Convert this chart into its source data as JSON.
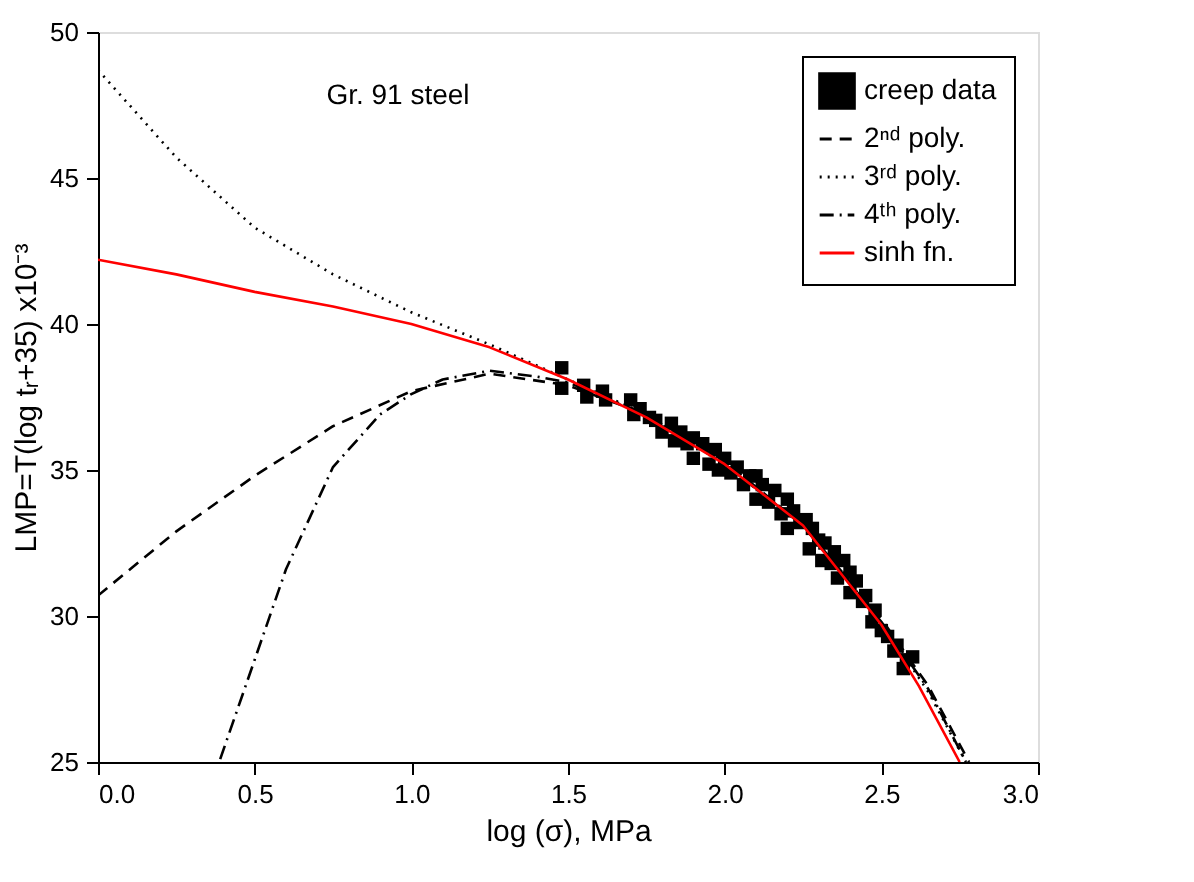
{
  "chart_data": {
    "type": "line",
    "xlabel": "log (σ), MPa",
    "ylabel": "LMP=T(log tᵣ+35) x10⁻³",
    "annotations": [
      "Gr. 91 steel"
    ],
    "xlim": [
      0,
      3
    ],
    "ylim": [
      25,
      50
    ],
    "xticks": [
      {
        "value": 0,
        "label": "0.0"
      },
      0.5,
      {
        "value": 1,
        "label": "1.0"
      },
      1.5,
      {
        "value": 2,
        "label": "2.0"
      },
      2.5,
      {
        "value": 3,
        "label": "3.0"
      }
    ],
    "yticks": [
      25,
      30,
      35,
      40,
      45,
      50
    ],
    "grid": false,
    "legend": "top right",
    "series": [
      {
        "name": "creep data",
        "type": "scatter",
        "marker": "square",
        "color": "#000000",
        "x": [
          1.48,
          1.48,
          1.55,
          1.56,
          1.61,
          1.62,
          1.7,
          1.71,
          1.73,
          1.76,
          1.78,
          1.8,
          1.83,
          1.84,
          1.86,
          1.88,
          1.9,
          1.9,
          1.93,
          1.95,
          1.97,
          1.98,
          2.0,
          2.02,
          2.04,
          2.06,
          2.08,
          2.1,
          2.1,
          2.12,
          2.14,
          2.16,
          2.18,
          2.2,
          2.2,
          2.22,
          2.24,
          2.26,
          2.27,
          2.28,
          2.3,
          2.31,
          2.32,
          2.34,
          2.35,
          2.36,
          2.38,
          2.4,
          2.4,
          2.42,
          2.44,
          2.45,
          2.47,
          2.48,
          2.5,
          2.52,
          2.54,
          2.55,
          2.57,
          2.58,
          2.6
        ],
        "values": [
          38.5,
          37.8,
          37.9,
          37.5,
          37.7,
          37.4,
          37.4,
          36.9,
          37.1,
          36.8,
          36.7,
          36.3,
          36.6,
          36.0,
          36.3,
          35.9,
          36.1,
          35.4,
          35.9,
          35.2,
          35.7,
          35.0,
          35.4,
          34.9,
          35.1,
          34.5,
          34.8,
          34.8,
          34.0,
          34.5,
          33.9,
          34.3,
          33.5,
          34.0,
          33.0,
          33.6,
          33.2,
          33.3,
          32.3,
          33.0,
          32.6,
          31.9,
          32.5,
          31.8,
          32.2,
          31.3,
          31.9,
          31.5,
          30.8,
          31.2,
          30.5,
          30.7,
          29.8,
          30.2,
          29.5,
          29.3,
          28.8,
          29.0,
          28.2,
          28.5,
          28.6
        ]
      },
      {
        "name": "2ⁿᵈ poly.",
        "line_style": "dashed",
        "color": "#000000",
        "x": [
          0,
          0.25,
          0.5,
          0.75,
          1.0,
          1.25,
          1.5,
          1.75,
          2.0,
          2.25,
          2.5,
          2.65,
          2.78
        ],
        "values": [
          30.7,
          32.9,
          34.8,
          36.5,
          37.7,
          38.3,
          37.9,
          36.9,
          35.3,
          33.1,
          29.9,
          27.6,
          25.0
        ]
      },
      {
        "name": "3ʳᵈ poly.",
        "line_style": "dotted",
        "color": "#000000",
        "x": [
          0,
          0.25,
          0.5,
          0.75,
          1.0,
          1.25,
          1.5,
          1.75,
          2.0,
          2.25,
          2.5,
          2.65,
          2.77
        ],
        "values": [
          48.7,
          45.7,
          43.3,
          41.7,
          40.4,
          39.3,
          38.1,
          36.9,
          35.2,
          33.1,
          29.8,
          27.4,
          25.0
        ]
      },
      {
        "name": "4ᵗʰ poly.",
        "line_style": "dashdot",
        "color": "#000000",
        "x": [
          0.39,
          0.5,
          0.6,
          0.75,
          0.9,
          1.0,
          1.1,
          1.25,
          1.4,
          1.5,
          1.75,
          2.0,
          2.25,
          2.5,
          2.65,
          2.77
        ],
        "values": [
          25.1,
          28.5,
          31.6,
          35.1,
          36.9,
          37.6,
          38.1,
          38.4,
          38.2,
          38.0,
          36.9,
          35.2,
          33.1,
          29.8,
          27.5,
          25.0
        ]
      },
      {
        "name": "sinh fn.",
        "line_style": "solid",
        "color": "#ff0000",
        "x": [
          0,
          0.25,
          0.5,
          0.75,
          1.0,
          1.25,
          1.5,
          1.75,
          2.0,
          2.25,
          2.5,
          2.62,
          2.75
        ],
        "values": [
          42.2,
          41.7,
          41.1,
          40.6,
          40.0,
          39.2,
          38.1,
          36.8,
          35.2,
          33.1,
          29.7,
          27.6,
          25.0
        ]
      }
    ]
  }
}
